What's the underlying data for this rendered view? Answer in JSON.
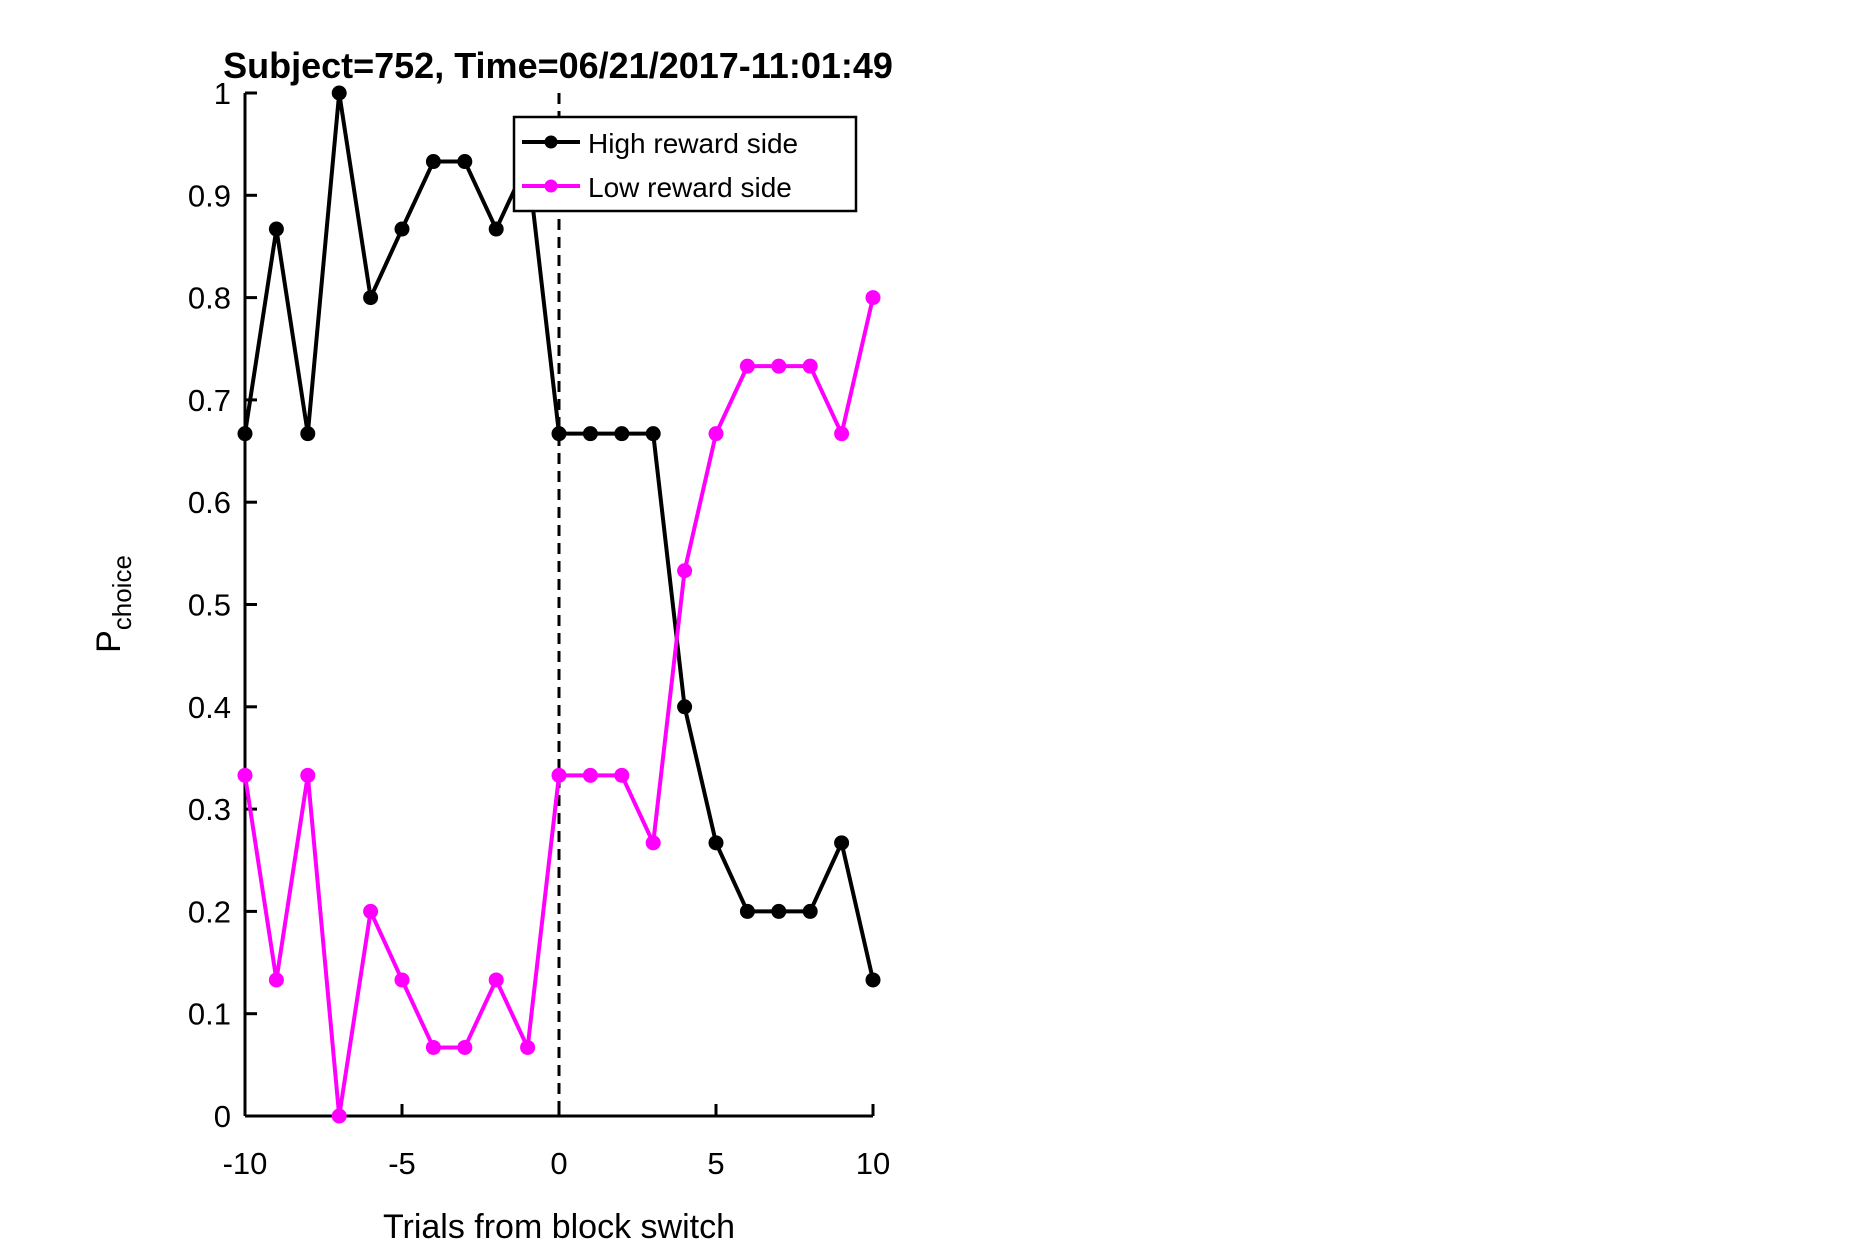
{
  "chart_data": {
    "type": "line",
    "title": "Subject=752, Time=06/21/2017-11:01:49",
    "xlabel": "Trials from block switch",
    "ylabel_main": "P",
    "ylabel_sub": "choice",
    "xlim": [
      -10,
      10
    ],
    "ylim": [
      0,
      1
    ],
    "xticks": [
      -10,
      -5,
      0,
      5,
      10
    ],
    "xtick_labels": [
      "-10",
      "-5",
      "0",
      "5",
      "10"
    ],
    "yticks": [
      0,
      0.1,
      0.2,
      0.3,
      0.4,
      0.5,
      0.6,
      0.7,
      0.8,
      0.9,
      1
    ],
    "ytick_labels": [
      "0",
      "0.1",
      "0.2",
      "0.3",
      "0.4",
      "0.5",
      "0.6",
      "0.7",
      "0.8",
      "0.9",
      "1"
    ],
    "grid": false,
    "legend_position": "top-right",
    "vertical_line": {
      "x": 0,
      "style": "dashed",
      "color": "#000000"
    },
    "x": [
      -10,
      -9,
      -8,
      -7,
      -6,
      -5,
      -4,
      -3,
      -2,
      -1,
      0,
      1,
      2,
      3,
      4,
      5,
      6,
      7,
      8,
      9,
      10
    ],
    "series": [
      {
        "name": "High reward side",
        "color": "#000000",
        "values": [
          0.667,
          0.867,
          0.667,
          1.0,
          0.8,
          0.867,
          0.933,
          0.933,
          0.867,
          0.933,
          0.667,
          0.667,
          0.667,
          0.667,
          0.4,
          0.267,
          0.2,
          0.2,
          0.2,
          0.267,
          0.133
        ]
      },
      {
        "name": "Low reward side",
        "color": "#ff00ff",
        "values": [
          0.333,
          0.133,
          0.333,
          0.0,
          0.2,
          0.133,
          0.067,
          0.067,
          0.133,
          0.067,
          0.333,
          0.333,
          0.333,
          0.267,
          0.533,
          0.667,
          0.733,
          0.733,
          0.733,
          0.667,
          0.8
        ]
      }
    ]
  }
}
